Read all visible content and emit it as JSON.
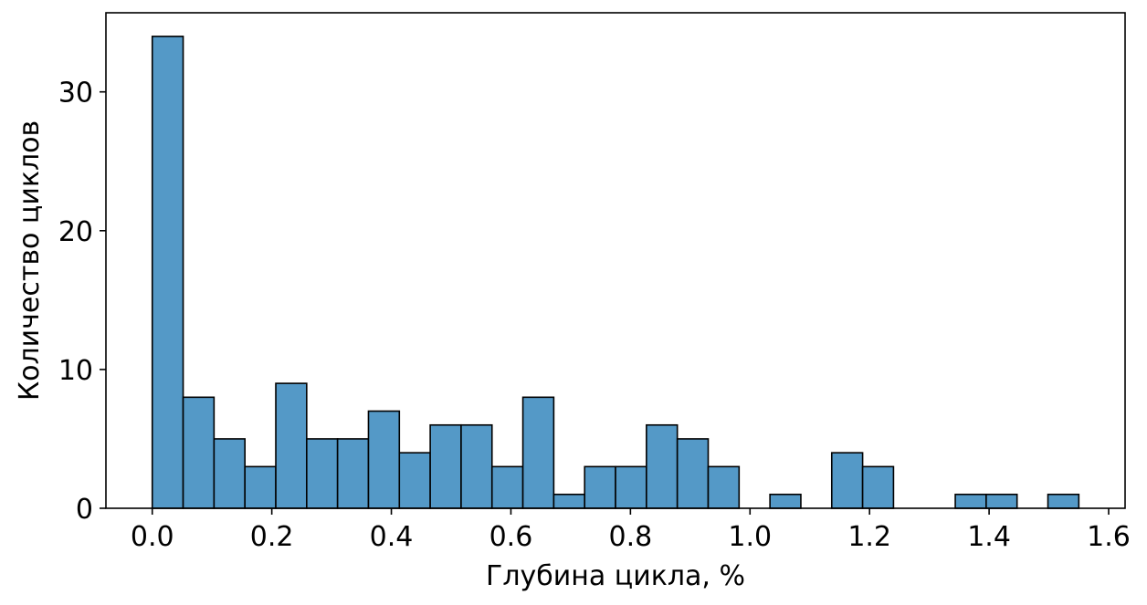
{
  "chart_data": {
    "type": "bar",
    "subtype": "histogram",
    "xlabel": "Глубина цикла, %",
    "ylabel": "Количество циклов",
    "xlim": [
      -0.0775,
      1.6275
    ],
    "ylim": [
      0,
      35.7
    ],
    "xticks": [
      0.0,
      0.2,
      0.4,
      0.6,
      0.8,
      1.0,
      1.2,
      1.4,
      1.6
    ],
    "xtick_labels": [
      "0.0",
      "0.2",
      "0.4",
      "0.6",
      "0.8",
      "1.0",
      "1.2",
      "1.4",
      "1.6"
    ],
    "yticks": [
      0,
      10,
      20,
      30
    ],
    "ytick_labels": [
      "0",
      "10",
      "20",
      "30"
    ],
    "bin_start": 0.0,
    "bin_width": 0.05167,
    "counts": [
      34,
      8,
      5,
      3,
      9,
      5,
      5,
      7,
      4,
      6,
      6,
      3,
      8,
      1,
      3,
      3,
      6,
      5,
      3,
      0,
      1,
      0,
      4,
      3,
      0,
      0,
      1,
      1,
      0,
      1
    ],
    "bar_color": "#5499c7",
    "edge_color": "#000000",
    "grid": false,
    "legend": "none"
  }
}
